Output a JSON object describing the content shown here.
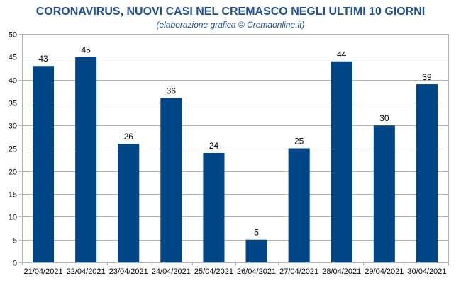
{
  "chart_data": {
    "type": "bar",
    "title": "CORONAVIRUS, NUOVI CASI NEL CREMASCO NEGLI ULTIMI 10 GIORNI",
    "subtitle": "(elaborazione grafica © Cremaonline.it)",
    "xlabel": "",
    "ylabel": "",
    "categories": [
      "21/04/2021",
      "22/04/2021",
      "23/04/2021",
      "24/04/2021",
      "25/04/2021",
      "26/04/2021",
      "27/04/2021",
      "28/04/2021",
      "29/04/2021",
      "30/04/2021"
    ],
    "values": [
      43,
      45,
      26,
      36,
      24,
      5,
      25,
      44,
      30,
      39
    ],
    "ylim": [
      0,
      50
    ],
    "yticks": [
      0,
      5,
      10,
      15,
      20,
      25,
      30,
      35,
      40,
      45,
      50
    ],
    "grid": true,
    "legend": "none",
    "bar_color": "#004586",
    "grid_color": "#b3b3b3",
    "title_color": "#1f4e99"
  }
}
